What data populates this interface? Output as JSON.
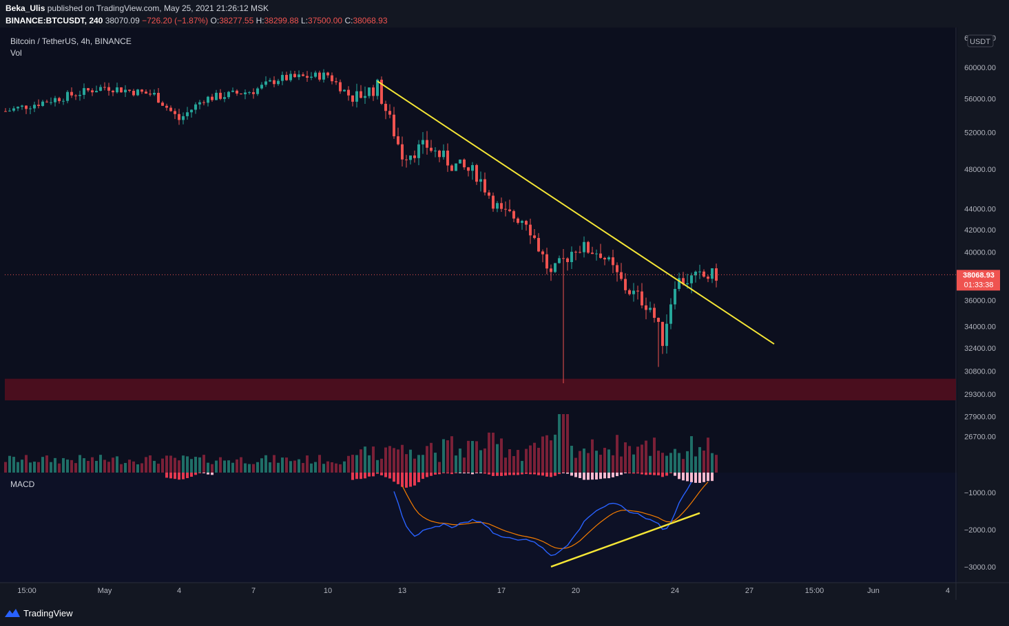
{
  "header": {
    "user": "Beka_Ulis",
    "published_text": "published on TradingView.com, May 25, 2021 21:26:12 MSK",
    "symbol": "BINANCE:BTCUSDT, 240",
    "last": "38070.09",
    "change": "−726.20 (−1.87%)",
    "o_label": "O:",
    "o_value": "38277.55",
    "h_label": "H:",
    "h_value": "38299.88",
    "l_label": "L:",
    "l_value": "37500.00",
    "c_label": "C:",
    "c_value": "38068.93"
  },
  "legend": {
    "title": "Bitcoin / TetherUS, 4h, BINANCE",
    "vol": "Vol",
    "macd": "MACD"
  },
  "price_axis": {
    "currency": "USDT",
    "ticks": [
      "64000.00",
      "60000.00",
      "56000.00",
      "52000.00",
      "48000.00",
      "44000.00",
      "42000.00",
      "40000.00",
      "36000.00",
      "34000.00",
      "32400.00",
      "30800.00",
      "29300.00",
      "27900.00",
      "26700.00"
    ],
    "last_price_label": "38068.93",
    "countdown": "01:33:38"
  },
  "macd_axis": {
    "ticks": [
      "−1000.00",
      "−2000.00",
      "−3000.00"
    ]
  },
  "time_axis": {
    "labels": [
      "15:00",
      "May",
      "4",
      "7",
      "10",
      "13",
      "17",
      "20",
      "24",
      "27",
      "15:00",
      "Jun",
      "4"
    ]
  },
  "footer": {
    "brand": "TradingView"
  },
  "colors": {
    "background": "#131722",
    "pane": "#0c0f1e",
    "up": "#26a69a",
    "down": "#ef5350",
    "trendline": "#f5e636",
    "zone": "#4a0e1e",
    "macd_line": "#2962ff",
    "signal_line": "#f57c00",
    "axis_text": "#b2b5be"
  },
  "chart_data": {
    "type": "candlestick",
    "symbol": "BTCUSDT",
    "interval": "4h",
    "price_range": [
      26000,
      64500
    ],
    "scale": "log",
    "last_price": 38068.93,
    "price_anchors": [
      {
        "date": "Apr 28",
        "price": 54500
      },
      {
        "date": "May 1",
        "price": 57500
      },
      {
        "date": "May 3",
        "price": 56500
      },
      {
        "date": "May 4",
        "price": 53500
      },
      {
        "date": "May 5",
        "price": 56000
      },
      {
        "date": "May 7",
        "price": 57000
      },
      {
        "date": "May 8",
        "price": 58500
      },
      {
        "date": "May 10",
        "price": 59000
      },
      {
        "date": "May 11",
        "price": 56000
      },
      {
        "date": "May 12",
        "price": 57500
      },
      {
        "date": "May 13",
        "price": 49500
      },
      {
        "date": "May 14",
        "price": 50500
      },
      {
        "date": "May 15",
        "price": 48500
      },
      {
        "date": "May 16",
        "price": 47500
      },
      {
        "date": "May 17",
        "price": 43500
      },
      {
        "date": "May 18",
        "price": 43000
      },
      {
        "date": "May 19",
        "price": 38000
      },
      {
        "date": "May 20",
        "price": 40500
      },
      {
        "date": "May 21",
        "price": 40000
      },
      {
        "date": "May 22",
        "price": 37000
      },
      {
        "date": "May 23",
        "price": 35500
      },
      {
        "date": "May 23 12:00",
        "price": 33000
      },
      {
        "date": "May 24",
        "price": 37500
      },
      {
        "date": "May 25",
        "price": 38070
      }
    ],
    "trendline": {
      "from": {
        "date": "May 12",
        "price": 58200
      },
      "to": {
        "date": "May 28",
        "price": 32700
      }
    },
    "support_zone": [
      28900,
      30300
    ],
    "macd_range": [
      -3300,
      -700
    ],
    "macd_trendline": {
      "from": {
        "date": "May 19",
        "macd": -3000
      },
      "to": {
        "date": "May 25",
        "macd": -1550
      }
    }
  }
}
